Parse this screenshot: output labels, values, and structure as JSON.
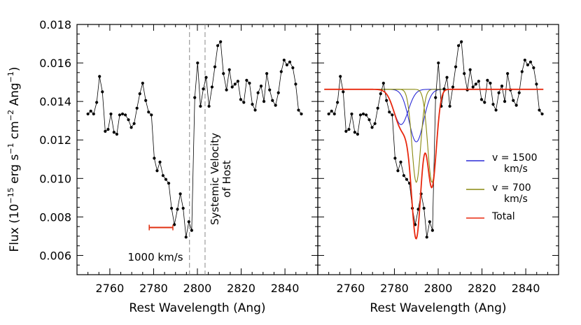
{
  "chart_data": [
    {
      "type": "line",
      "panel": "left",
      "xlabel": "Rest Wavelength (Ang)",
      "ylabel_parts": [
        "Flux (10",
        "−15",
        " erg s",
        "−1",
        " cm",
        "−2",
        " Ang",
        "−1",
        ")"
      ],
      "xlim": [
        2745,
        2855
      ],
      "ylim": [
        0.005,
        0.018
      ],
      "xticks": [
        2760,
        2780,
        2800,
        2820,
        2840
      ],
      "yticks": [
        0.006,
        0.008,
        0.01,
        0.012,
        0.014,
        0.016,
        0.018
      ],
      "series": [
        {
          "x": [
            2750.0,
            2751.3,
            2752.6,
            2754.0,
            2755.3,
            2756.6,
            2757.9,
            2759.2,
            2760.5,
            2761.9,
            2763.2,
            2764.5,
            2765.8,
            2767.1,
            2768.5,
            2769.8,
            2771.1,
            2772.4,
            2773.7,
            2775.0,
            2776.4,
            2777.7,
            2779.0,
            2780.3,
            2781.6,
            2782.9,
            2784.3,
            2785.6,
            2786.9,
            2788.2,
            2789.5,
            2790.9,
            2792.2,
            2793.5,
            2794.8,
            2796.1,
            2797.4,
            2798.8,
            2800.1,
            2801.4,
            2802.7,
            2804.0,
            2805.3,
            2806.7,
            2808.0,
            2809.3,
            2810.6,
            2811.9,
            2813.3,
            2814.6,
            2815.9,
            2817.2,
            2818.5,
            2819.8,
            2821.2,
            2822.5,
            2823.8,
            2825.1,
            2826.4,
            2827.7,
            2829.1,
            2830.4,
            2831.7,
            2833.0,
            2834.3,
            2835.7,
            2837.0,
            2838.3,
            2839.6,
            2840.9,
            2842.2,
            2843.6,
            2844.9,
            2846.2,
            2847.5
          ],
          "y": [
            0.01335,
            0.0135,
            0.01335,
            0.01395,
            0.0153,
            0.0145,
            0.01245,
            0.01255,
            0.01335,
            0.0124,
            0.0123,
            0.0133,
            0.01335,
            0.0133,
            0.01305,
            0.01265,
            0.01285,
            0.01365,
            0.0144,
            0.01495,
            0.01405,
            0.01345,
            0.0133,
            0.01105,
            0.0104,
            0.01085,
            0.01015,
            0.00995,
            0.00975,
            0.00845,
            0.0076,
            0.0084,
            0.0092,
            0.00845,
            0.00695,
            0.00775,
            0.0073,
            0.0142,
            0.016,
            0.01375,
            0.01465,
            0.01525,
            0.01375,
            0.01475,
            0.0158,
            0.0169,
            0.0171,
            0.01545,
            0.0146,
            0.01565,
            0.01475,
            0.0149,
            0.01505,
            0.0141,
            0.01395,
            0.0151,
            0.01495,
            0.01385,
            0.01355,
            0.01445,
            0.0148,
            0.014,
            0.01545,
            0.0146,
            0.01405,
            0.0138,
            0.01445,
            0.01555,
            0.01615,
            0.0159,
            0.01605,
            0.01575,
            0.0149,
            0.01355,
            0.01335
          ]
        }
      ],
      "vlines": [
        2796.4,
        2803.5
      ],
      "annotations": {
        "scalebar": {
          "x0": 2778.0,
          "x1": 2788.8,
          "y": 0.00745,
          "color": "#e03010"
        },
        "scalebar_label": "1000 km/s",
        "host_label_1": "Systemic Velocity",
        "host_label_2": "of Host"
      }
    },
    {
      "type": "line",
      "panel": "right",
      "xlabel": "Rest Wavelength (Ang)",
      "xlim": [
        2745,
        2855
      ],
      "ylim": [
        0.005,
        0.018
      ],
      "xticks": [
        2760,
        2780,
        2800,
        2820,
        2840
      ],
      "continuum": 0.01463,
      "components": [
        {
          "kind": "blue",
          "center": 2783.0,
          "sigma": 3.3,
          "depth": 0.00183,
          "color": "#2a2ad6"
        },
        {
          "kind": "blue",
          "center": 2790.0,
          "sigma": 3.3,
          "depth": 0.00273,
          "color": "#2a2ad6"
        },
        {
          "kind": "olive",
          "center": 2790.0,
          "sigma": 2.0,
          "depth": 0.00483,
          "color": "#8a8a10"
        },
        {
          "kind": "olive",
          "center": 2797.2,
          "sigma": 2.0,
          "depth": 0.00483,
          "color": "#8a8a10"
        }
      ],
      "total_color": "#e8280e",
      "legend": [
        {
          "label_1": "v = 1500",
          "label_2": "km/s",
          "color": "#2a2ad6"
        },
        {
          "label_1": "v = 700",
          "label_2": "km/s",
          "color": "#8a8a10"
        },
        {
          "label_1": "Total",
          "label_2": "",
          "color": "#e8280e"
        }
      ]
    }
  ]
}
